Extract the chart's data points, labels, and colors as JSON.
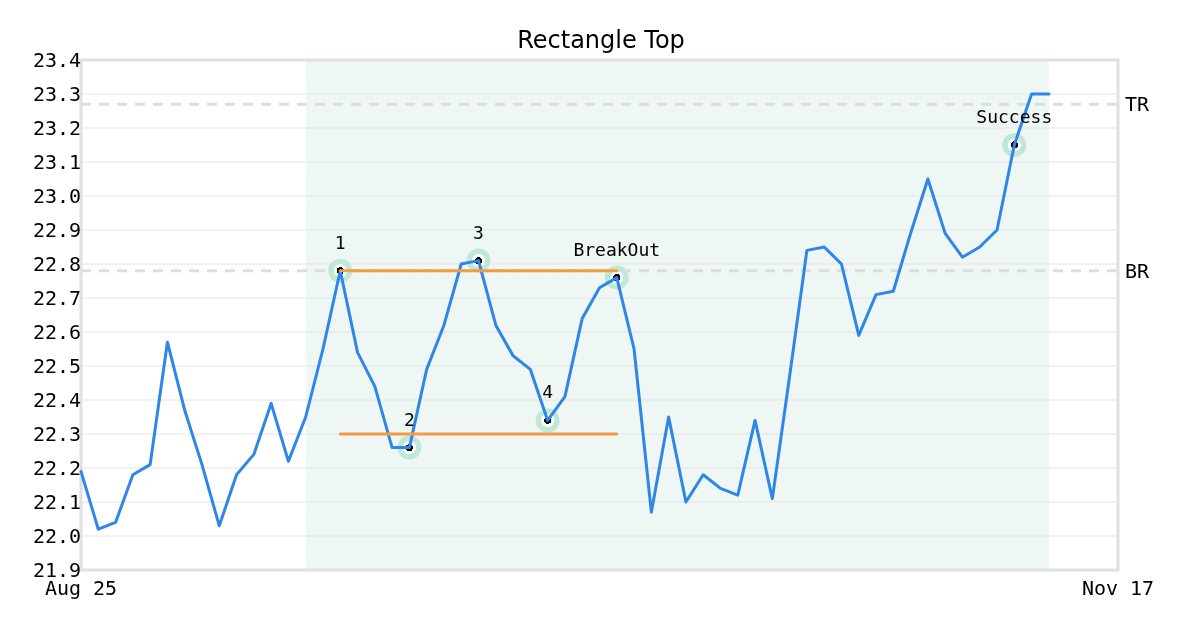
{
  "chart_data": {
    "type": "line",
    "title": "Rectangle Top",
    "categories": [
      "Aug 25",
      null,
      null,
      null,
      null,
      null,
      null,
      null,
      null,
      null,
      null,
      null,
      null,
      null,
      null,
      null,
      null,
      null,
      null,
      null,
      null,
      null,
      null,
      null,
      null,
      null,
      null,
      null,
      null,
      null,
      null,
      null,
      null,
      null,
      null,
      null,
      null,
      null,
      null,
      null,
      null,
      null,
      null,
      null,
      null,
      null,
      null,
      null,
      null,
      null,
      null,
      null,
      null,
      null,
      null,
      null,
      null,
      null,
      null,
      null,
      "Nov 17"
    ],
    "ylim": [
      21.9,
      23.4
    ],
    "yticks": [
      {
        "value": 21.9,
        "label": "21.9"
      },
      {
        "value": 22.0,
        "label": "22.0"
      },
      {
        "value": 22.1,
        "label": "22.1"
      },
      {
        "value": 22.2,
        "label": "22.2"
      },
      {
        "value": 22.3,
        "label": "22.3"
      },
      {
        "value": 22.4,
        "label": "22.4"
      },
      {
        "value": 22.5,
        "label": "22.5"
      },
      {
        "value": 22.6,
        "label": "22.6"
      },
      {
        "value": 22.7,
        "label": "22.7"
      },
      {
        "value": 22.8,
        "label": "22.8"
      },
      {
        "value": 22.9,
        "label": "22.9"
      },
      {
        "value": 23.0,
        "label": "23.0"
      },
      {
        "value": 23.1,
        "label": "23.1"
      },
      {
        "value": 23.2,
        "label": "23.2"
      },
      {
        "value": 23.3,
        "label": "23.3"
      },
      {
        "value": 23.4,
        "label": "23.4"
      }
    ],
    "grid": "y",
    "ref_lines": [
      {
        "axis": "y",
        "value": 23.27,
        "label": "TR",
        "color": "#dddddd",
        "line_style": "dashed"
      },
      {
        "axis": "y",
        "value": 22.78,
        "label": "BR",
        "color": "#dddddd",
        "line_style": "dashed"
      }
    ],
    "series": [
      {
        "color": "#2e86e6",
        "marker": "none",
        "values": [
          22.19,
          22.02,
          22.04,
          22.18,
          22.21,
          22.57,
          22.37,
          22.21,
          22.03,
          22.18,
          22.24,
          22.39,
          22.22,
          22.35,
          22.55,
          22.78,
          22.54,
          22.44,
          22.26,
          22.26,
          22.49,
          22.62,
          22.8,
          22.81,
          22.62,
          22.53,
          22.49,
          22.34,
          22.41,
          22.64,
          22.73,
          22.76,
          22.55,
          22.07,
          22.35,
          22.1,
          22.18,
          22.14,
          22.12,
          22.34,
          22.11,
          22.47,
          22.84,
          22.85,
          22.8,
          22.59,
          22.71,
          22.72,
          22.89,
          23.05,
          22.89,
          22.82,
          22.85,
          22.9,
          23.15,
          23.3,
          23.3,
          null,
          null,
          null,
          null
        ]
      },
      {
        "color": "#f59a45",
        "marker": "none",
        "values": [
          null,
          null,
          null,
          null,
          null,
          null,
          null,
          null,
          null,
          null,
          null,
          null,
          null,
          null,
          null,
          22.78,
          22.78,
          22.78,
          22.78,
          22.78,
          22.78,
          22.78,
          22.78,
          22.78,
          22.78,
          22.78,
          22.78,
          22.78,
          22.78,
          22.78,
          22.78,
          22.78,
          null,
          null,
          null,
          null,
          null,
          null,
          null,
          null,
          null,
          null,
          null,
          null,
          null,
          null,
          null,
          null,
          null,
          null,
          null,
          null,
          null,
          null,
          null,
          null,
          null,
          null,
          null,
          null,
          null
        ]
      },
      {
        "color": "#f59a45",
        "marker": "none",
        "values": [
          null,
          null,
          null,
          null,
          null,
          null,
          null,
          null,
          null,
          null,
          null,
          null,
          null,
          null,
          null,
          22.3,
          22.3,
          22.3,
          22.3,
          22.3,
          22.3,
          22.3,
          22.3,
          22.3,
          22.3,
          22.3,
          22.3,
          22.3,
          22.3,
          22.3,
          22.3,
          22.3,
          null,
          null,
          null,
          null,
          null,
          null,
          null,
          null,
          null,
          null,
          null,
          null,
          null,
          null,
          null,
          null,
          null,
          null,
          null,
          null,
          null,
          null,
          null,
          null,
          null,
          null,
          null,
          null,
          null
        ]
      },
      {
        "type": "scatter",
        "color": "#bfe9d6",
        "marker": "circle",
        "values": [
          null,
          null,
          null,
          null,
          null,
          null,
          null,
          null,
          null,
          null,
          null,
          null,
          null,
          null,
          null,
          22.78,
          null,
          null,
          null,
          22.26,
          null,
          null,
          null,
          22.81,
          null,
          null,
          null,
          22.34,
          null,
          null,
          null,
          22.76,
          null,
          null,
          null,
          null,
          null,
          null,
          null,
          null,
          null,
          null,
          null,
          null,
          null,
          null,
          null,
          null,
          null,
          null,
          null,
          null,
          null,
          null,
          23.15,
          null,
          null,
          null,
          null,
          null,
          null
        ]
      }
    ],
    "annotations": [
      "1",
      "2",
      "3",
      "4",
      "BreakOut",
      "Success"
    ]
  }
}
